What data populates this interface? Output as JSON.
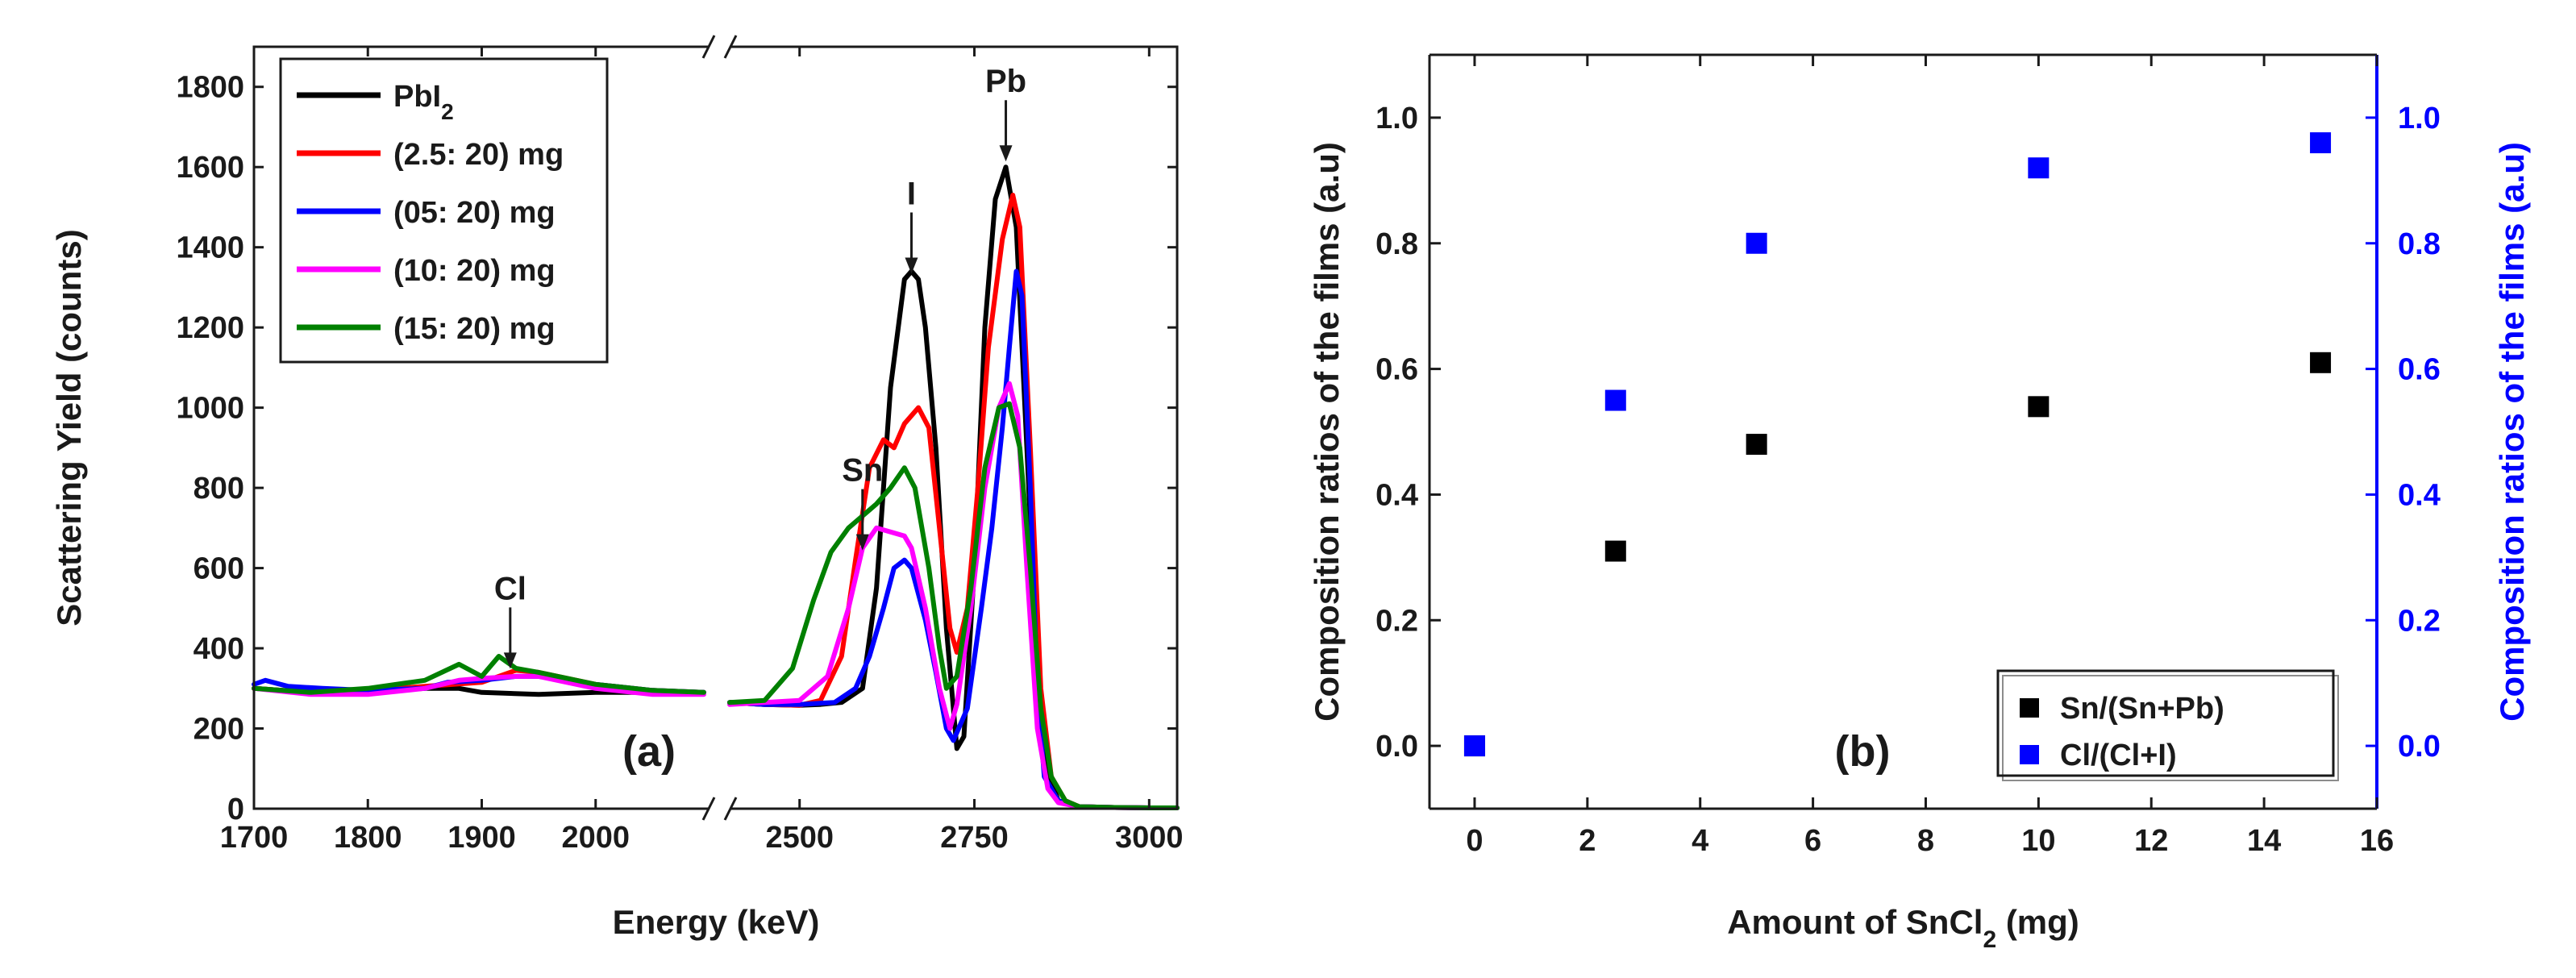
{
  "chart_data": [
    {
      "type": "line",
      "panel_label": "(a)",
      "xlabel": "Energy (keV)",
      "ylabel": "Scattering Yield (counts)",
      "xlim_segments": [
        [
          1700,
          2100
        ],
        [
          2400,
          3040
        ]
      ],
      "ylim": [
        0,
        1900
      ],
      "x_ticks": [
        1700,
        1800,
        1900,
        2000,
        2500,
        2750,
        3000
      ],
      "y_ticks": [
        0,
        200,
        400,
        600,
        800,
        1000,
        1200,
        1400,
        1600,
        1800
      ],
      "legend_position": "top-left",
      "legend_entries": [
        {
          "text": "PbI",
          "sub": "2"
        },
        {
          "text": "(2.5: 20) mg"
        },
        {
          "text": "(05: 20) mg"
        },
        {
          "text": "(10: 20) mg"
        },
        {
          "text": "(15: 20) mg"
        }
      ],
      "annotations": [
        {
          "text": "Cl",
          "x": 1925,
          "y": 345
        },
        {
          "text": "Sn",
          "x": 2590,
          "y": 640
        },
        {
          "text": "I",
          "x": 2660,
          "y": 1330
        },
        {
          "text": "Pb",
          "x": 2795,
          "y": 1610
        }
      ],
      "series": [
        {
          "color": "#000000",
          "points": [
            [
              1700,
              300
            ],
            [
              1750,
              290
            ],
            [
              1800,
              290
            ],
            [
              1850,
              300
            ],
            [
              1880,
              300
            ],
            [
              1900,
              290
            ],
            [
              1950,
              285
            ],
            [
              2000,
              290
            ],
            [
              2050,
              290
            ],
            [
              2095,
              290
            ],
            [
              2400,
              265
            ],
            [
              2450,
              260
            ],
            [
              2500,
              258
            ],
            [
              2530,
              260
            ],
            [
              2560,
              265
            ],
            [
              2590,
              300
            ],
            [
              2610,
              550
            ],
            [
              2630,
              1050
            ],
            [
              2650,
              1320
            ],
            [
              2660,
              1340
            ],
            [
              2670,
              1320
            ],
            [
              2680,
              1200
            ],
            [
              2695,
              900
            ],
            [
              2710,
              450
            ],
            [
              2725,
              150
            ],
            [
              2735,
              180
            ],
            [
              2750,
              600
            ],
            [
              2765,
              1200
            ],
            [
              2780,
              1520
            ],
            [
              2795,
              1600
            ],
            [
              2810,
              1450
            ],
            [
              2825,
              900
            ],
            [
              2840,
              350
            ],
            [
              2850,
              120
            ],
            [
              2870,
              20
            ],
            [
              2900,
              5
            ],
            [
              2950,
              3
            ],
            [
              3000,
              2
            ],
            [
              3040,
              2
            ]
          ]
        },
        {
          "color": "#ff0000",
          "points": [
            [
              1700,
              300
            ],
            [
              1750,
              290
            ],
            [
              1800,
              295
            ],
            [
              1850,
              305
            ],
            [
              1900,
              315
            ],
            [
              1930,
              345
            ],
            [
              1950,
              340
            ],
            [
              2000,
              310
            ],
            [
              2050,
              295
            ],
            [
              2095,
              290
            ],
            [
              2400,
              265
            ],
            [
              2450,
              260
            ],
            [
              2500,
              258
            ],
            [
              2530,
              270
            ],
            [
              2560,
              380
            ],
            [
              2580,
              620
            ],
            [
              2600,
              850
            ],
            [
              2620,
              920
            ],
            [
              2635,
              900
            ],
            [
              2650,
              960
            ],
            [
              2670,
              1000
            ],
            [
              2685,
              950
            ],
            [
              2700,
              700
            ],
            [
              2715,
              450
            ],
            [
              2725,
              390
            ],
            [
              2740,
              500
            ],
            [
              2755,
              800
            ],
            [
              2770,
              1150
            ],
            [
              2790,
              1420
            ],
            [
              2805,
              1530
            ],
            [
              2815,
              1450
            ],
            [
              2830,
              900
            ],
            [
              2845,
              300
            ],
            [
              2860,
              80
            ],
            [
              2880,
              20
            ],
            [
              2900,
              5
            ],
            [
              2950,
              3
            ],
            [
              3000,
              2
            ],
            [
              3040,
              2
            ]
          ]
        },
        {
          "color": "#0000ff",
          "points": [
            [
              1700,
              310
            ],
            [
              1710,
              320
            ],
            [
              1730,
              305
            ],
            [
              1760,
              300
            ],
            [
              1800,
              295
            ],
            [
              1850,
              300
            ],
            [
              1870,
              315
            ],
            [
              1900,
              320
            ],
            [
              1930,
              330
            ],
            [
              1950,
              330
            ],
            [
              2000,
              310
            ],
            [
              2050,
              295
            ],
            [
              2095,
              290
            ],
            [
              2400,
              265
            ],
            [
              2450,
              260
            ],
            [
              2500,
              260
            ],
            [
              2550,
              265
            ],
            [
              2580,
              300
            ],
            [
              2600,
              380
            ],
            [
              2620,
              500
            ],
            [
              2635,
              600
            ],
            [
              2650,
              620
            ],
            [
              2660,
              600
            ],
            [
              2680,
              470
            ],
            [
              2695,
              340
            ],
            [
              2710,
              200
            ],
            [
              2720,
              170
            ],
            [
              2740,
              250
            ],
            [
              2760,
              500
            ],
            [
              2775,
              700
            ],
            [
              2790,
              950
            ],
            [
              2800,
              1150
            ],
            [
              2810,
              1340
            ],
            [
              2818,
              1280
            ],
            [
              2830,
              800
            ],
            [
              2840,
              300
            ],
            [
              2850,
              80
            ],
            [
              2870,
              20
            ],
            [
              2900,
              5
            ],
            [
              2950,
              3
            ],
            [
              3000,
              2
            ],
            [
              3040,
              2
            ]
          ]
        },
        {
          "color": "#ff00ff",
          "points": [
            [
              1700,
              300
            ],
            [
              1750,
              285
            ],
            [
              1800,
              285
            ],
            [
              1850,
              300
            ],
            [
              1880,
              320
            ],
            [
              1900,
              325
            ],
            [
              1930,
              330
            ],
            [
              1950,
              330
            ],
            [
              2000,
              300
            ],
            [
              2050,
              285
            ],
            [
              2095,
              285
            ],
            [
              2400,
              260
            ],
            [
              2450,
              265
            ],
            [
              2500,
              270
            ],
            [
              2540,
              330
            ],
            [
              2570,
              500
            ],
            [
              2590,
              650
            ],
            [
              2610,
              700
            ],
            [
              2630,
              690
            ],
            [
              2650,
              680
            ],
            [
              2660,
              650
            ],
            [
              2680,
              500
            ],
            [
              2700,
              300
            ],
            [
              2715,
              200
            ],
            [
              2725,
              260
            ],
            [
              2745,
              500
            ],
            [
              2765,
              800
            ],
            [
              2785,
              1000
            ],
            [
              2800,
              1060
            ],
            [
              2812,
              980
            ],
            [
              2825,
              600
            ],
            [
              2840,
              200
            ],
            [
              2855,
              50
            ],
            [
              2870,
              15
            ],
            [
              2900,
              5
            ],
            [
              2950,
              3
            ],
            [
              3000,
              2
            ],
            [
              3040,
              2
            ]
          ]
        },
        {
          "color": "#008000",
          "points": [
            [
              1700,
              300
            ],
            [
              1750,
              290
            ],
            [
              1800,
              300
            ],
            [
              1850,
              320
            ],
            [
              1880,
              360
            ],
            [
              1900,
              330
            ],
            [
              1915,
              380
            ],
            [
              1930,
              350
            ],
            [
              1950,
              340
            ],
            [
              2000,
              310
            ],
            [
              2050,
              295
            ],
            [
              2095,
              290
            ],
            [
              2400,
              265
            ],
            [
              2450,
              270
            ],
            [
              2490,
              350
            ],
            [
              2520,
              520
            ],
            [
              2545,
              640
            ],
            [
              2570,
              700
            ],
            [
              2590,
              730
            ],
            [
              2610,
              760
            ],
            [
              2630,
              800
            ],
            [
              2650,
              850
            ],
            [
              2665,
              800
            ],
            [
              2685,
              600
            ],
            [
              2700,
              400
            ],
            [
              2710,
              300
            ],
            [
              2725,
              330
            ],
            [
              2745,
              550
            ],
            [
              2765,
              850
            ],
            [
              2785,
              1000
            ],
            [
              2800,
              1010
            ],
            [
              2815,
              900
            ],
            [
              2830,
              600
            ],
            [
              2845,
              250
            ],
            [
              2860,
              80
            ],
            [
              2880,
              20
            ],
            [
              2900,
              5
            ],
            [
              2950,
              3
            ],
            [
              3000,
              2
            ],
            [
              3040,
              2
            ]
          ]
        }
      ]
    },
    {
      "type": "scatter",
      "panel_label": "(b)",
      "xlabel": "Amount of SnCl",
      "xlabel_sub": "2",
      "xlabel_suffix": " (mg)",
      "ylabel": "Composition ratios of the films (a.u)",
      "y2label": "Composition ratios of the films (a.u)",
      "xlim": [
        -0.8,
        16
      ],
      "ylim": [
        -0.1,
        1.1
      ],
      "y2lim": [
        -0.1,
        1.1
      ],
      "x_ticks": [
        0,
        2,
        4,
        6,
        8,
        10,
        12,
        14,
        16
      ],
      "y_ticks": [
        0.0,
        0.2,
        0.4,
        0.6,
        0.8,
        1.0
      ],
      "y_tick_labels": [
        "0.0",
        "0.2",
        "0.4",
        "0.6",
        "0.8",
        "1.0"
      ],
      "y2_ticks": [
        0.0,
        0.2,
        0.4,
        0.6,
        0.8,
        1.0
      ],
      "y2_tick_labels": [
        "0.0",
        "0.2",
        "0.4",
        "0.6",
        "0.8",
        "1.0"
      ],
      "legend_position": "bottom-right",
      "colors": {
        "left_axis": "#1a1a1a",
        "right_axis": "#0000ff"
      },
      "series": [
        {
          "name": "Sn/(Sn+Pb)",
          "color": "#000000",
          "x": [
            0,
            2.5,
            5,
            10,
            15
          ],
          "y": [
            0.0,
            0.31,
            0.48,
            0.54,
            0.61
          ]
        },
        {
          "name": "Cl/(Cl+I)",
          "color": "#0000ff",
          "x": [
            0,
            2.5,
            5,
            10,
            15
          ],
          "y": [
            0.0,
            0.55,
            0.8,
            0.92,
            0.96
          ]
        }
      ]
    }
  ]
}
